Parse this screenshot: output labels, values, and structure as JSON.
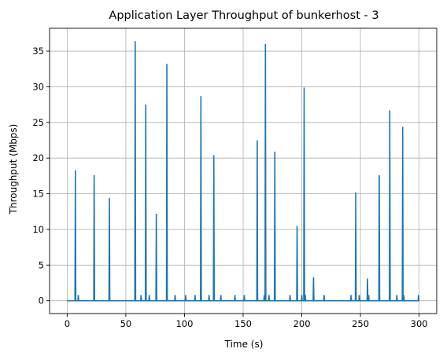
{
  "chart_data": {
    "type": "line",
    "title": "Application Layer Throughput of bunkerhost - 3",
    "xlabel": "Time (s)",
    "ylabel": "Throughput (Mbps)",
    "xlim": [
      -15,
      315
    ],
    "ylim": [
      -1.8,
      38.2
    ],
    "xticks": [
      0,
      50,
      100,
      150,
      200,
      250,
      300
    ],
    "yticks": [
      0,
      5,
      10,
      15,
      20,
      25,
      30,
      35
    ],
    "grid": true,
    "color": "#1f77b4",
    "series": [
      {
        "spikes": [
          [
            7,
            18.3
          ],
          [
            9.5,
            0.8
          ],
          [
            23,
            17.6
          ],
          [
            36,
            14.4
          ],
          [
            58,
            36.4
          ],
          [
            63,
            0.8
          ],
          [
            67,
            27.5
          ],
          [
            70,
            0.8
          ],
          [
            76,
            12.2
          ],
          [
            85,
            33.2
          ],
          [
            92,
            0.8
          ],
          [
            101,
            0.8
          ],
          [
            109,
            0.8
          ],
          [
            114,
            28.7
          ],
          [
            121,
            0.8
          ],
          [
            125,
            20.4
          ],
          [
            131,
            0.8
          ],
          [
            143,
            0.8
          ],
          [
            151,
            0.8
          ],
          [
            162,
            22.5
          ],
          [
            168,
            0.8
          ],
          [
            169,
            36.0
          ],
          [
            172,
            0.8
          ],
          [
            177,
            20.9
          ],
          [
            190,
            0.8
          ],
          [
            196,
            10.5
          ],
          [
            200,
            0.8
          ],
          [
            202,
            29.9
          ],
          [
            203,
            0.8
          ],
          [
            210,
            3.3
          ],
          [
            219,
            0.8
          ],
          [
            242,
            0.8
          ],
          [
            246,
            15.2
          ],
          [
            249,
            0.8
          ],
          [
            256,
            3.1
          ],
          [
            257,
            0.8
          ],
          [
            266,
            17.6
          ],
          [
            275,
            26.7
          ],
          [
            281,
            0.8
          ],
          [
            286,
            24.4
          ],
          [
            287,
            0.8
          ],
          [
            299.5,
            0.8
          ]
        ]
      }
    ]
  }
}
